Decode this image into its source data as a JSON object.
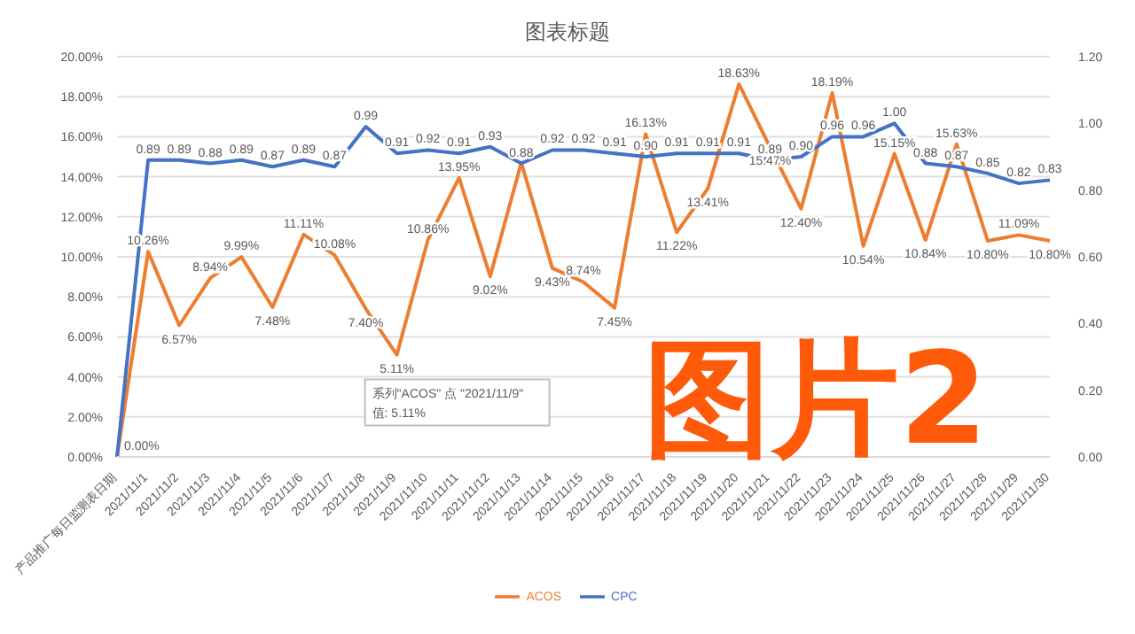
{
  "chart_data": {
    "type": "line",
    "title": "图表标题",
    "categories": [
      "产品推广每日监测表日期",
      "2021/11/1",
      "2021/11/2",
      "2021/11/3",
      "2021/11/4",
      "2021/11/5",
      "2021/11/6",
      "2021/11/7",
      "2021/11/8",
      "2021/11/9",
      "2021/11/10",
      "2021/11/11",
      "2021/11/12",
      "2021/11/13",
      "2021/11/14",
      "2021/11/15",
      "2021/11/16",
      "2021/11/17",
      "2021/11/18",
      "2021/11/19",
      "2021/11/20",
      "2021/11/21",
      "2021/11/22",
      "2021/11/23",
      "2021/11/24",
      "2021/11/25",
      "2021/11/26",
      "2021/11/27",
      "2021/11/28",
      "2021/11/29",
      "2021/11/30"
    ],
    "series": [
      {
        "name": "ACOS",
        "color": "#ed7d31",
        "values": [
          0,
          10.26,
          6.57,
          8.94,
          9.99,
          7.48,
          11.11,
          10.08,
          7.4,
          5.11,
          10.86,
          13.95,
          9.02,
          14.7,
          9.43,
          8.74,
          7.45,
          16.13,
          11.22,
          13.41,
          18.63,
          15.47,
          12.4,
          18.19,
          10.54,
          15.15,
          10.84,
          15.63,
          10.8,
          11.09,
          10.8
        ],
        "value_labels": [
          "0.00%",
          "10.26%",
          "6.57%",
          "8.94%",
          "9.99%",
          "7.48%",
          "11.11%",
          "10.08%",
          "7.40%",
          "5.11%",
          "10.86%",
          "13.95%",
          "9.02%",
          null,
          "9.43%",
          "8.74%",
          "7.45%",
          "16.13%",
          "11.22%",
          "13.41%",
          "18.63%",
          "15.47%",
          "12.40%",
          "18.19%",
          "10.54%",
          "15.15%",
          "10.84%",
          "15.63%",
          "10.80%",
          "11.09%",
          "10.80%"
        ]
      },
      {
        "name": "CPC",
        "color": "#4472c4",
        "axis": "y2",
        "values": [
          0,
          0.89,
          0.89,
          0.88,
          0.89,
          0.87,
          0.89,
          0.87,
          0.99,
          0.91,
          0.92,
          0.91,
          0.93,
          0.88,
          0.92,
          0.92,
          0.91,
          0.9,
          0.91,
          0.91,
          0.91,
          0.89,
          0.9,
          0.96,
          0.96,
          1.0,
          0.88,
          0.87,
          0.85,
          0.82,
          0.83
        ],
        "value_labels": [
          null,
          "0.89",
          "0.89",
          "0.88",
          "0.89",
          "0.87",
          "0.89",
          "0.87",
          "0.99",
          "0.91",
          "0.92",
          "0.91",
          "0.93",
          "0.88",
          "0.92",
          "0.92",
          "0.91",
          "0.90",
          "0.91",
          "0.91",
          "0.91",
          "0.89",
          "0.90",
          "0.96",
          "0.96",
          "1.00",
          "0.88",
          "0.87",
          "0.85",
          "0.82",
          "0.83"
        ]
      }
    ],
    "ylim": [
      0,
      20
    ],
    "yticks": [
      {
        "value": 0,
        "label": "0.00%"
      },
      {
        "value": 2,
        "label": "2.00%"
      },
      {
        "value": 4,
        "label": "4.00%"
      },
      {
        "value": 6,
        "label": "6.00%"
      },
      {
        "value": 8,
        "label": "8.00%"
      },
      {
        "value": 10,
        "label": "10.00%"
      },
      {
        "value": 12,
        "label": "12.00%"
      },
      {
        "value": 14,
        "label": "14.00%"
      },
      {
        "value": 16,
        "label": "16.00%"
      },
      {
        "value": 18,
        "label": "18.00%"
      },
      {
        "value": 20,
        "label": "20.00%"
      }
    ],
    "y2lim": [
      0,
      1.2
    ],
    "y2ticks": [
      {
        "value": 0,
        "label": "0.00"
      },
      {
        "value": 0.2,
        "label": "0.20"
      },
      {
        "value": 0.4,
        "label": "0.40"
      },
      {
        "value": 0.6,
        "label": "0.60"
      },
      {
        "value": 0.8,
        "label": "0.80"
      },
      {
        "value": 1.0,
        "label": "1.00"
      },
      {
        "value": 1.2,
        "label": "1.20"
      }
    ],
    "grid": "y",
    "legend": "bottom",
    "marker": "none",
    "line_style": "solid",
    "annotations": [
      {
        "text": "系列\"ACOS\" 点 \"2021/11/9\" 值: 5.11%",
        "x": "2021/11/9",
        "y": 5.11
      },
      "图片2"
    ]
  }
}
